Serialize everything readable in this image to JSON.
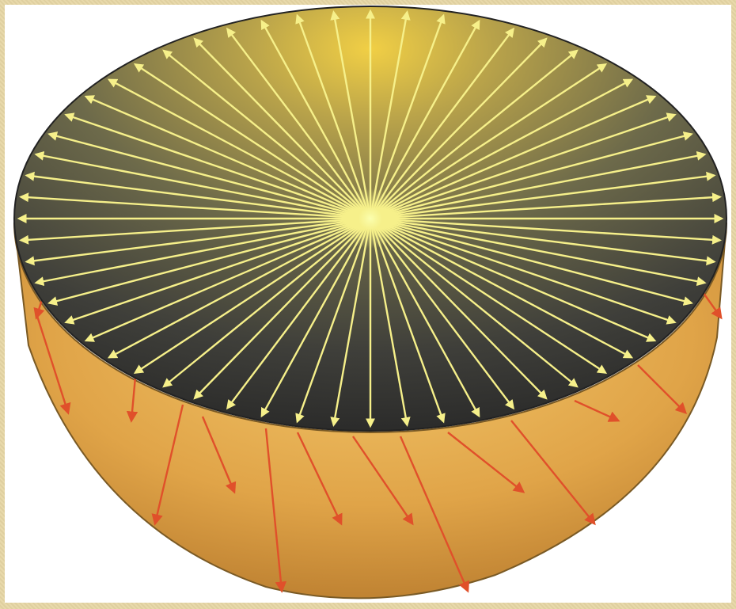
{
  "figure": {
    "colors": {
      "frame": "#e6d6a4",
      "background": "#ffffff",
      "disk_center": "#e8c44a",
      "disk_edge": "#2e2e2e",
      "bowl_center": "#f2c267",
      "bowl_edge": "#c98f3a",
      "inner_arrows": "#f6f08a",
      "outer_arrows": "#e0502a"
    },
    "icons": {
      "inner_arrow_head": "arrowhead-icon",
      "outer_arrow_head": "arrowhead-icon"
    }
  }
}
